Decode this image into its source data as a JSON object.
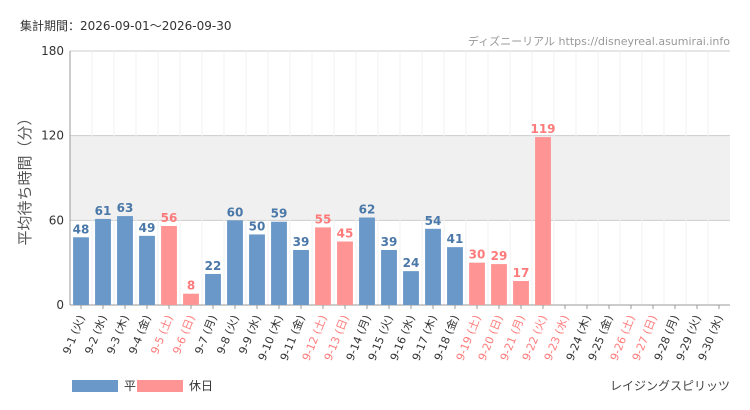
{
  "header": {
    "period_label": "集計期間：2026-09-01～2026-09-30",
    "source": "ディズニーリアル https://disneyreal.asumirai.info"
  },
  "footer": {
    "attraction": "レイジングスピリッツ"
  },
  "legend": [
    {
      "label": "平日",
      "color": "#6a98c8"
    },
    {
      "label": "休日",
      "color": "#ff9494"
    }
  ],
  "colors": {
    "weekday_bar": "#6a98c8",
    "holiday_bar": "#ff9494",
    "weekday_text": "#4a78a8",
    "holiday_text": "#ff7a7a",
    "band": "#f0f0f0",
    "grid": "#cccccc"
  },
  "chart_data": {
    "type": "bar",
    "ylabel": "平均待ち時間（分）",
    "ylim": [
      0,
      180
    ],
    "yticks": [
      0,
      60,
      120,
      180
    ],
    "shaded_band": [
      60,
      120
    ],
    "categories": [
      "9-1 (火)",
      "9-2 (水)",
      "9-3 (木)",
      "9-4 (金)",
      "9-5 (土)",
      "9-6 (日)",
      "9-7 (月)",
      "9-8 (火)",
      "9-9 (水)",
      "9-10 (木)",
      "9-11 (金)",
      "9-12 (土)",
      "9-13 (日)",
      "9-14 (月)",
      "9-15 (火)",
      "9-16 (水)",
      "9-17 (木)",
      "9-18 (金)",
      "9-19 (土)",
      "9-20 (日)",
      "9-21 (月)",
      "9-22 (火)",
      "9-23 (水)",
      "9-24 (木)",
      "9-25 (金)",
      "9-26 (土)",
      "9-27 (日)",
      "9-28 (月)",
      "9-29 (火)",
      "9-30 (水)"
    ],
    "values": [
      48,
      61,
      63,
      49,
      56,
      8,
      22,
      60,
      50,
      59,
      39,
      55,
      45,
      62,
      39,
      24,
      54,
      41,
      30,
      29,
      17,
      119,
      null,
      null,
      null,
      null,
      null,
      null,
      null,
      null
    ],
    "holiday": [
      false,
      false,
      false,
      false,
      true,
      true,
      false,
      false,
      false,
      false,
      false,
      true,
      true,
      false,
      false,
      false,
      false,
      false,
      true,
      true,
      true,
      true,
      true,
      false,
      false,
      true,
      true,
      false,
      false,
      false
    ],
    "legend_position": "bottom-left"
  }
}
